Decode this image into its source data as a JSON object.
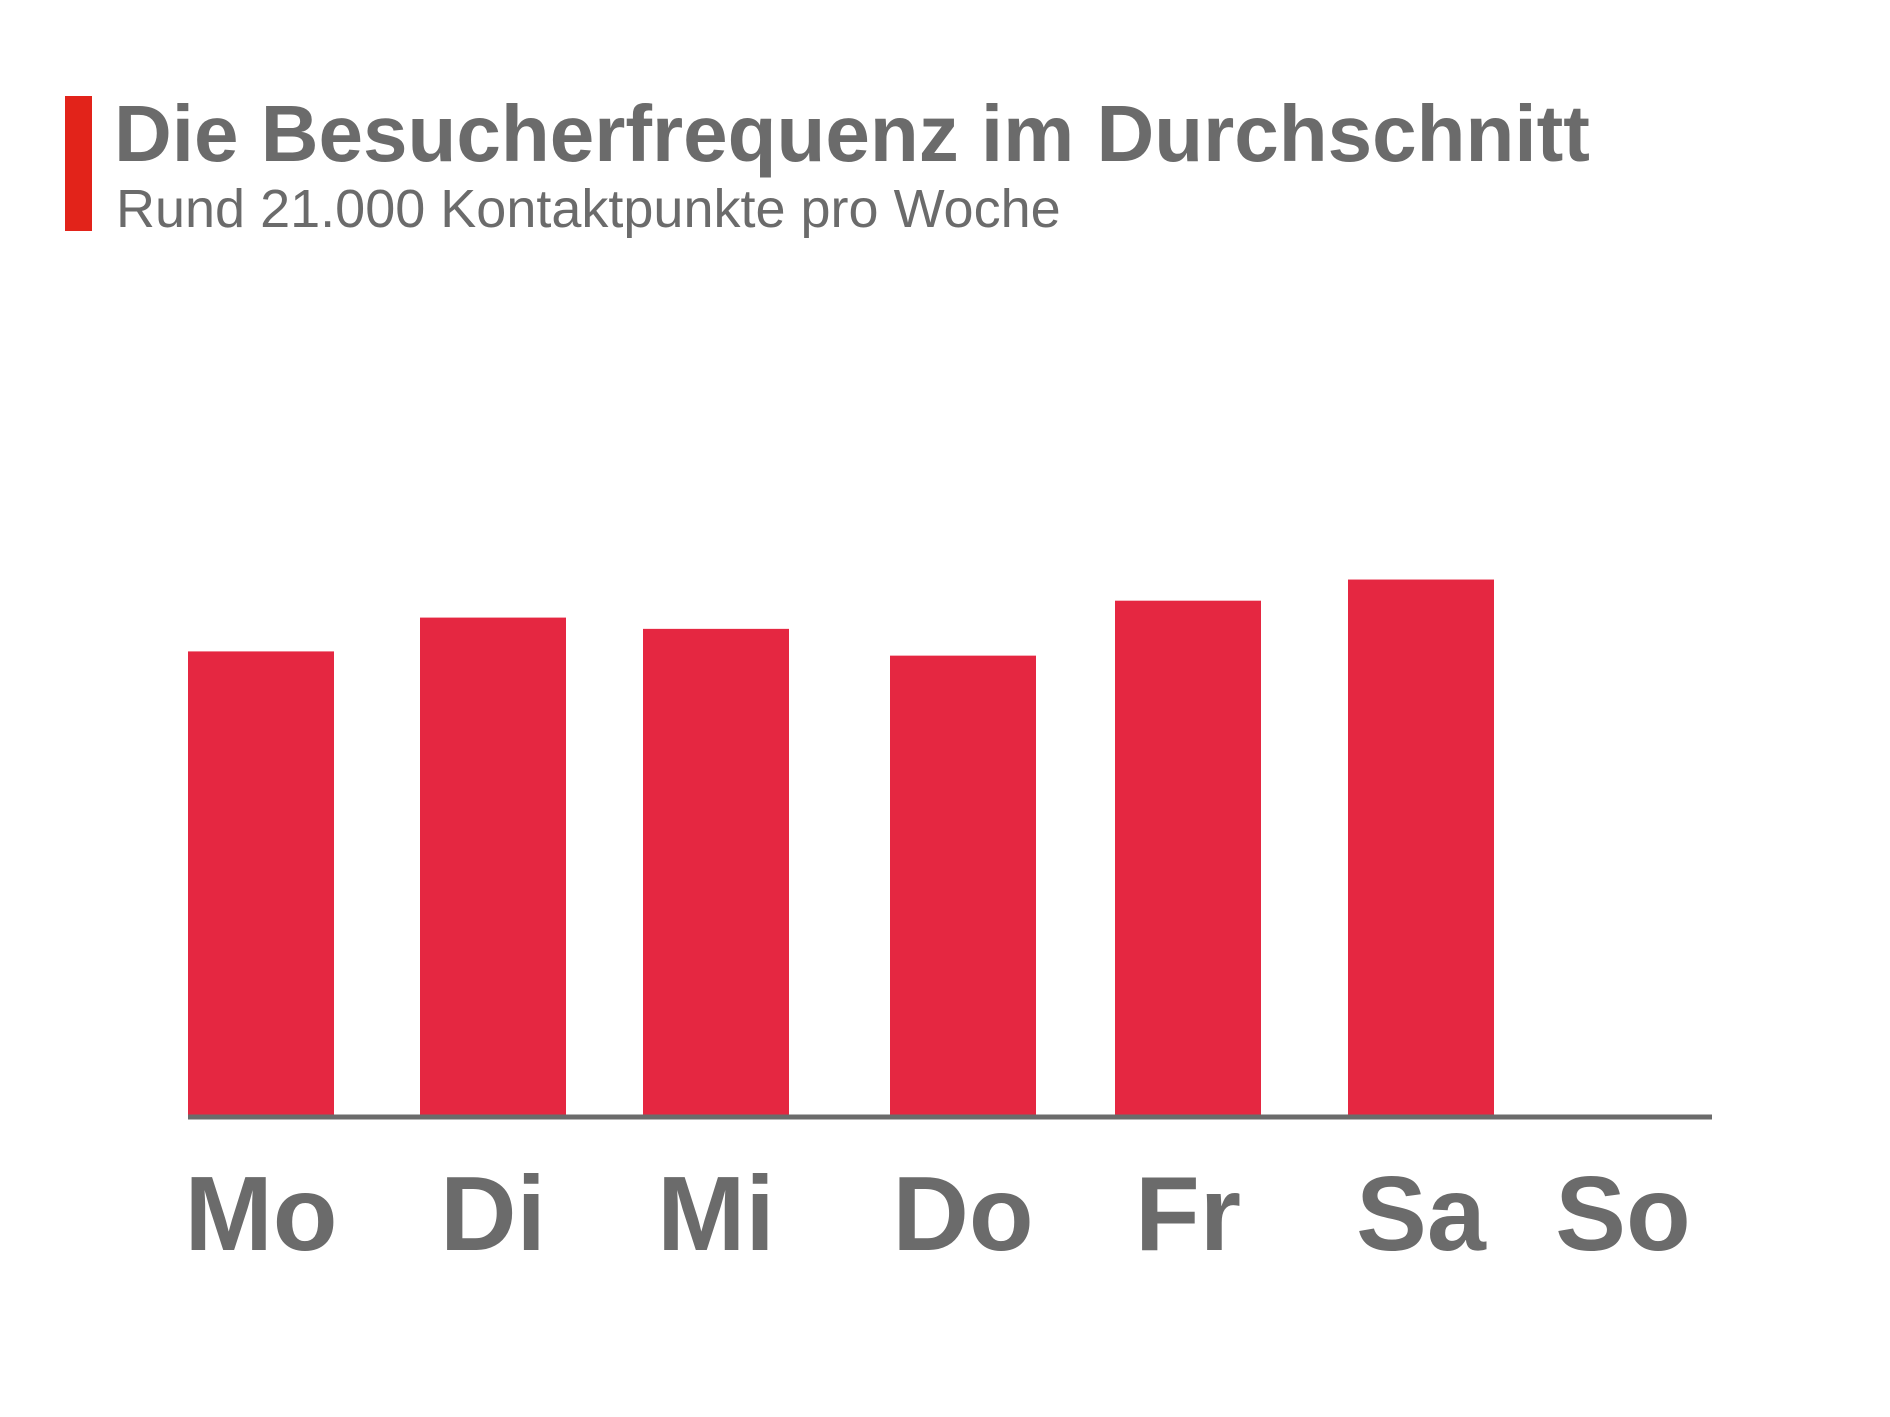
{
  "header": {
    "title": "Die Besucherfrequenz im Durchschnitt",
    "subtitle": "Rund 21.000 Kontaktpunkte pro Woche"
  },
  "colors": {
    "accent": "#e2231a",
    "bar": "#e52741",
    "text": "#6b6b6b",
    "axis": "#6b6b6b"
  },
  "chart_data": {
    "type": "bar",
    "title": "Die Besucherfrequenz im Durchschnitt",
    "subtitle": "Rund 21.000 Kontaktpunkte pro Woche",
    "categories": [
      "Mo",
      "Di",
      "Mi",
      "Do",
      "Fr",
      "Sa",
      "So"
    ],
    "values": [
      3290,
      3530,
      3450,
      3260,
      3650,
      3800,
      0
    ],
    "ylim": [
      0,
      5500
    ],
    "grid": false,
    "legend": "none",
    "xlabel": "",
    "ylabel": ""
  }
}
